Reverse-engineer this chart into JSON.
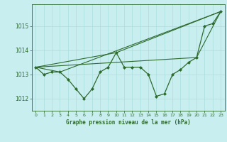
{
  "title": "Graphe pression niveau de la mer (hPa)",
  "bg_color": "#c8eef0",
  "grid_color": "#aadddd",
  "line_color": "#2d6a2d",
  "x_ticks": [
    0,
    1,
    2,
    3,
    4,
    5,
    6,
    7,
    8,
    9,
    10,
    11,
    12,
    13,
    14,
    15,
    16,
    17,
    18,
    19,
    20,
    21,
    22,
    23
  ],
  "ylim": [
    1011.5,
    1015.9
  ],
  "yticks": [
    1012,
    1013,
    1014,
    1015
  ],
  "figsize": [
    3.2,
    2.0
  ],
  "dpi": 100,
  "series": [
    {
      "x": [
        0,
        1,
        2,
        3,
        4,
        5,
        6,
        7,
        8,
        9,
        10,
        11,
        12,
        13,
        14,
        15,
        16,
        17,
        18,
        19,
        20,
        21,
        22,
        23
      ],
      "y": [
        1013.3,
        1013.0,
        1013.1,
        1013.1,
        1012.8,
        1012.4,
        1012.0,
        1012.4,
        1013.1,
        1013.3,
        1013.9,
        1013.3,
        1013.3,
        1013.3,
        1013.0,
        1012.1,
        1012.2,
        1013.0,
        1013.2,
        1013.5,
        1013.7,
        1015.0,
        1015.1,
        1015.6
      ],
      "marker": "D",
      "linestyle": "-",
      "linewidth": 0.9
    },
    {
      "x": [
        0,
        3,
        23
      ],
      "y": [
        1013.3,
        1013.1,
        1015.6
      ],
      "marker": null,
      "linestyle": "-",
      "linewidth": 0.8
    },
    {
      "x": [
        0,
        10,
        23
      ],
      "y": [
        1013.3,
        1013.9,
        1015.6
      ],
      "marker": null,
      "linestyle": "-",
      "linewidth": 0.8
    },
    {
      "x": [
        0,
        20,
        23
      ],
      "y": [
        1013.3,
        1013.7,
        1015.6
      ],
      "marker": null,
      "linestyle": "-",
      "linewidth": 0.8
    }
  ]
}
